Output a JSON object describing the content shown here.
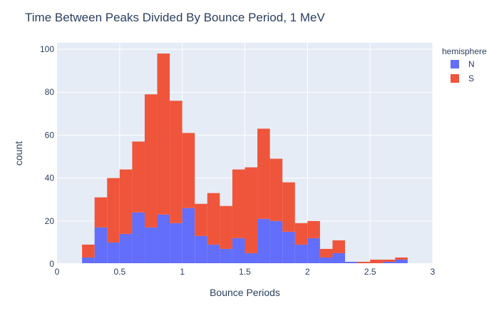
{
  "chart_data": {
    "type": "bar",
    "barmode": "stack",
    "title": "Time Between Peaks Divided By Bounce Period, 1 MeV",
    "xlabel": "Bounce Periods",
    "ylabel": "count",
    "xlim": [
      0,
      3
    ],
    "ylim": [
      0,
      103
    ],
    "x_ticks": [
      {
        "value": 0,
        "label": "0"
      },
      {
        "value": 0.5,
        "label": "0.5"
      },
      {
        "value": 1,
        "label": "1"
      },
      {
        "value": 1.5,
        "label": "1.5"
      },
      {
        "value": 2,
        "label": "2"
      },
      {
        "value": 2.5,
        "label": "2.5"
      },
      {
        "value": 3,
        "label": "3"
      }
    ],
    "y_ticks": [
      {
        "value": 0,
        "label": "0"
      },
      {
        "value": 20,
        "label": "20"
      },
      {
        "value": 40,
        "label": "40"
      },
      {
        "value": 60,
        "label": "60"
      },
      {
        "value": 80,
        "label": "80"
      },
      {
        "value": 100,
        "label": "100"
      }
    ],
    "grid": true,
    "bin_width": 0.1,
    "bin_starts": [
      0.2,
      0.3,
      0.4,
      0.5,
      0.6,
      0.7,
      0.8,
      0.9,
      1.0,
      1.1,
      1.2,
      1.3,
      1.4,
      1.5,
      1.6,
      1.7,
      1.8,
      1.9,
      2.0,
      2.1,
      2.2,
      2.3,
      2.4,
      2.5,
      2.6,
      2.7
    ],
    "legend": {
      "title": "hemisphere",
      "placement": "top-right"
    },
    "series": [
      {
        "name": "N",
        "color": "#636efa",
        "values": [
          3,
          17,
          10,
          14,
          24,
          17,
          23,
          19,
          26,
          13,
          9,
          7,
          12,
          5,
          21,
          20,
          15,
          9,
          12,
          3,
          5,
          1,
          0,
          0,
          1,
          2
        ]
      },
      {
        "name": "S",
        "color": "#ef553b",
        "values": [
          6,
          14,
          30,
          30,
          33,
          62,
          75,
          57,
          35,
          15,
          24,
          20,
          32,
          40,
          42,
          29,
          23,
          10,
          8,
          4,
          6,
          0,
          1,
          2,
          1,
          1
        ]
      }
    ]
  }
}
